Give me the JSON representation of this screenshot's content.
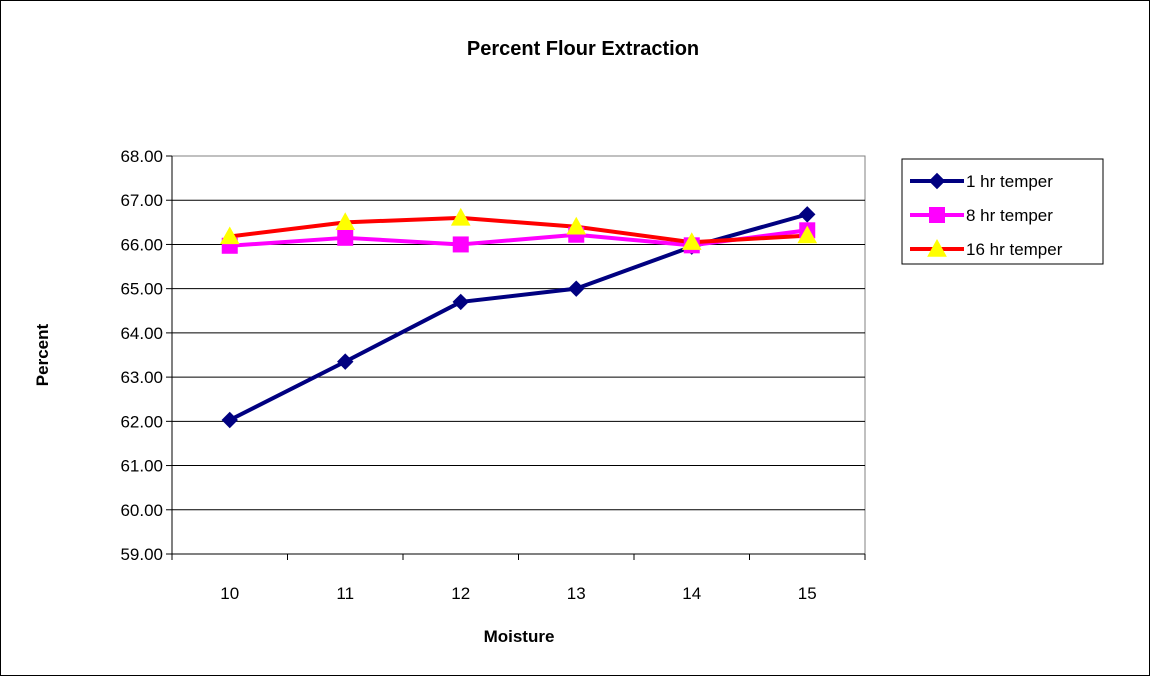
{
  "chart_data": {
    "type": "line",
    "title": "Percent Flour Extraction",
    "xlabel": "Moisture",
    "ylabel": "Percent",
    "categories": [
      "10",
      "11",
      "12",
      "13",
      "14",
      "15"
    ],
    "ylim": [
      59,
      68
    ],
    "yticks": [
      "59.00",
      "60.00",
      "61.00",
      "62.00",
      "63.00",
      "64.00",
      "65.00",
      "66.00",
      "67.00",
      "68.00"
    ],
    "grid": "horizontal",
    "legend_position": "right",
    "series": [
      {
        "name": "1 hr temper",
        "values": [
          62.03,
          63.35,
          64.7,
          65.0,
          65.95,
          66.68
        ],
        "color": "#000080",
        "marker": "diamond",
        "marker_color": "#000080"
      },
      {
        "name": "8 hr temper",
        "values": [
          65.97,
          66.15,
          66.0,
          66.22,
          65.98,
          66.32
        ],
        "color": "#FF00FF",
        "marker": "square",
        "marker_color": "#FF00FF"
      },
      {
        "name": "16 hr temper",
        "values": [
          66.18,
          66.5,
          66.6,
          66.4,
          66.05,
          66.2
        ],
        "color": "#FF0000",
        "marker": "triangle",
        "marker_color": "#FFFF00"
      }
    ]
  }
}
